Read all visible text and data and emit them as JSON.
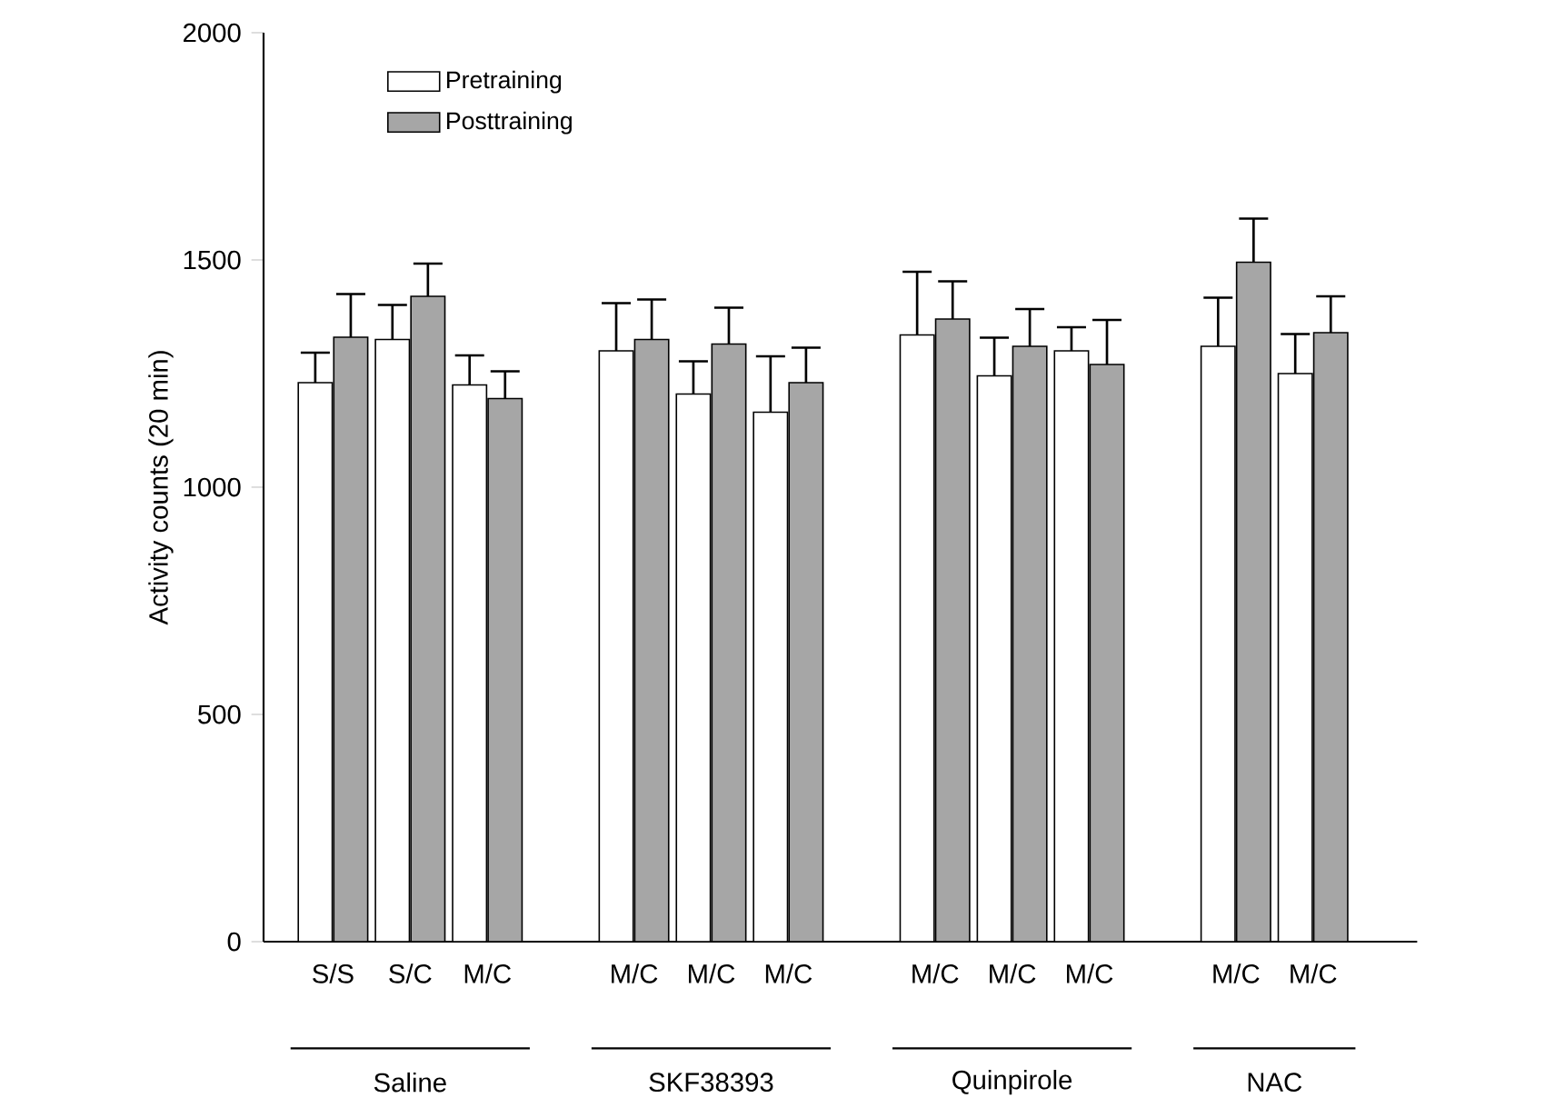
{
  "chart_data": {
    "type": "bar",
    "ylabel": "Activity counts (20 min)",
    "categories": [
      "S/S",
      "S/C",
      "M/C",
      "M/C",
      "M/C",
      "M/C",
      "M/C",
      "M/C",
      "M/C",
      "M/C",
      "M/C"
    ],
    "series": [
      {
        "name": "Pretraining",
        "color": "#ffffff",
        "values": [
          1230,
          1325,
          1225,
          1300,
          1205,
          1165,
          1335,
          1245,
          1300,
          1310,
          1250
        ],
        "errors": [
          66,
          76,
          65,
          105,
          72,
          123,
          139,
          84,
          52,
          107,
          87
        ]
      },
      {
        "name": "Posttraining",
        "color": "#a6a6a6",
        "values": [
          1330,
          1420,
          1195,
          1325,
          1315,
          1230,
          1370,
          1310,
          1270,
          1495,
          1340
        ],
        "errors": [
          95,
          72,
          60,
          88,
          80,
          77,
          83,
          82,
          98,
          96,
          80
        ]
      }
    ],
    "annotations": [
      "Saline",
      "SKF38393",
      "Quinpirole",
      "NAC"
    ],
    "ylim": [
      0,
      2000
    ],
    "yticks": [
      0,
      500,
      1000,
      1500,
      2000
    ],
    "legend": "top left",
    "grid": false
  }
}
